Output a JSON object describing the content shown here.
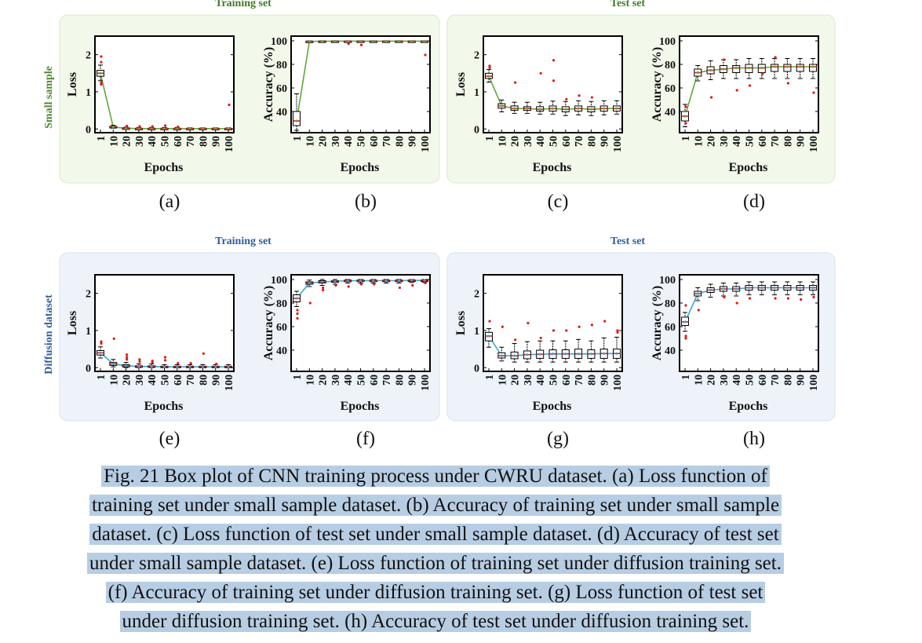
{
  "colors": {
    "small_panel_bg": "#f2f8ea",
    "small_panel_border": "#dbe8cf",
    "small_line": "#5fa83a",
    "small_row_label": "#4c8a2c",
    "small_header": "#3f7a22",
    "diff_panel_bg": "#eef3fa",
    "diff_panel_border": "#d6e1ef",
    "diff_line": "#37a7cf",
    "diff_row_label": "#2f5d9a",
    "diff_header": "#2f5d9a",
    "outlier": "#e01818",
    "median": "#e01818",
    "box_fill": "#ffffff",
    "caption_highlight": "#b7cde3"
  },
  "headers": {
    "row1_training": "Training set",
    "row1_test": "Test set",
    "row2_training": "Training set",
    "row2_test": "Test set"
  },
  "row_labels": {
    "row1": "Small sample",
    "row2": "Diffusion dataset"
  },
  "caption": {
    "lines": [
      "Fig. 21 Box plot of CNN training process under CWRU dataset. (a) Loss function of",
      "training set under small sample dataset. (b) Accuracy of training set under small sample",
      "dataset. (c) Loss function of test set under small sample dataset. (d) Accuracy of test set",
      "under small sample dataset. (e) Loss function of training set under diffusion training set.",
      "(f) Accuracy of training set under diffusion training set. (g) Loss function of test set",
      "under diffusion training set. (h) Accuracy of test set under diffusion training set."
    ]
  },
  "chart_data": [
    {
      "label": "(a)",
      "type": "box",
      "ylabel": "Loss",
      "xlabel": "Epochs",
      "ylim": [
        -0.1,
        2.5
      ],
      "yticks": [
        0,
        1,
        2
      ],
      "categories": [
        "1",
        "10",
        "20",
        "30",
        "40",
        "50",
        "60",
        "70",
        "80",
        "90",
        "100"
      ],
      "medians": [
        1.5,
        0.05,
        0.02,
        0.01,
        0.01,
        0.01,
        0.01,
        0.01,
        0.01,
        0.01,
        0.01
      ],
      "q1": [
        1.42,
        0.04,
        0.01,
        0.0,
        0.0,
        0.0,
        0.0,
        0.0,
        0.0,
        0.0,
        0.0
      ],
      "q3": [
        1.58,
        0.07,
        0.03,
        0.02,
        0.02,
        0.02,
        0.02,
        0.02,
        0.02,
        0.02,
        0.02
      ],
      "whisker_low": [
        1.3,
        0.02,
        0.0,
        0.0,
        0.0,
        0.0,
        0.0,
        0.0,
        0.0,
        0.0,
        0.0
      ],
      "whisker_high": [
        1.72,
        0.1,
        0.05,
        0.04,
        0.04,
        0.04,
        0.04,
        0.03,
        0.03,
        0.03,
        0.03
      ],
      "outliers": [
        [
          0,
          1.95
        ],
        [
          0,
          1.8
        ],
        [
          0,
          1.25
        ],
        [
          0,
          1.2
        ],
        [
          2,
          0.08
        ],
        [
          3,
          0.07
        ],
        [
          4,
          0.07
        ],
        [
          5,
          0.09
        ],
        [
          6,
          0.06
        ],
        [
          10,
          0.65
        ]
      ]
    },
    {
      "label": "(b)",
      "type": "box",
      "ylabel": "Accuracy (%)",
      "xlabel": "Epochs",
      "ylim": [
        22,
        104
      ],
      "yticks": [
        40,
        60,
        80,
        100
      ],
      "categories": [
        "1",
        "10",
        "20",
        "30",
        "40",
        "50",
        "60",
        "70",
        "80",
        "90",
        "100"
      ],
      "medians": [
        32,
        99.5,
        99.6,
        99.7,
        99.7,
        99.7,
        99.7,
        99.7,
        99.7,
        99.7,
        99.7
      ],
      "q1": [
        28,
        99.2,
        99.4,
        99.5,
        99.5,
        99.5,
        99.5,
        99.5,
        99.5,
        99.5,
        99.5
      ],
      "q3": [
        40,
        99.8,
        99.9,
        99.9,
        99.9,
        99.9,
        99.9,
        99.9,
        99.9,
        99.9,
        99.9
      ],
      "whisker_low": [
        24,
        98.8,
        99.0,
        99.2,
        99.2,
        99.2,
        99.2,
        99.2,
        99.2,
        99.2,
        99.2
      ],
      "whisker_high": [
        55,
        100,
        100,
        100,
        100,
        100,
        100,
        100,
        100,
        100,
        100
      ],
      "outliers": [
        [
          4,
          97.5
        ],
        [
          5,
          96.5
        ],
        [
          10,
          88
        ]
      ]
    },
    {
      "label": "(c)",
      "type": "box",
      "ylabel": "Loss",
      "xlabel": "Epochs",
      "ylim": [
        -0.1,
        2.5
      ],
      "yticks": [
        0,
        1,
        2
      ],
      "categories": [
        "1",
        "10",
        "20",
        "30",
        "40",
        "50",
        "60",
        "70",
        "80",
        "90",
        "100"
      ],
      "medians": [
        1.42,
        0.62,
        0.55,
        0.55,
        0.53,
        0.55,
        0.53,
        0.55,
        0.53,
        0.55,
        0.55
      ],
      "q1": [
        1.36,
        0.56,
        0.5,
        0.5,
        0.48,
        0.48,
        0.46,
        0.48,
        0.46,
        0.48,
        0.48
      ],
      "q3": [
        1.5,
        0.68,
        0.62,
        0.6,
        0.6,
        0.62,
        0.6,
        0.62,
        0.6,
        0.62,
        0.62
      ],
      "whisker_low": [
        1.26,
        0.46,
        0.42,
        0.42,
        0.4,
        0.4,
        0.36,
        0.38,
        0.36,
        0.38,
        0.4
      ],
      "whisker_high": [
        1.6,
        0.78,
        0.72,
        0.72,
        0.72,
        0.75,
        0.74,
        0.76,
        0.74,
        0.76,
        0.76
      ],
      "outliers": [
        [
          0,
          1.7
        ],
        [
          0,
          1.65
        ],
        [
          2,
          1.25
        ],
        [
          4,
          1.5
        ],
        [
          5,
          1.85
        ],
        [
          5,
          1.3
        ],
        [
          6,
          0.8
        ],
        [
          7,
          0.9
        ],
        [
          8,
          0.85
        ]
      ]
    },
    {
      "label": "(d)",
      "type": "box",
      "ylabel": "Accuracy (%)",
      "xlabel": "Epochs",
      "ylim": [
        22,
        104
      ],
      "yticks": [
        40,
        60,
        80,
        100
      ],
      "categories": [
        "1",
        "10",
        "20",
        "30",
        "40",
        "50",
        "60",
        "70",
        "80",
        "90",
        "100"
      ],
      "medians": [
        36,
        73,
        75,
        76,
        77,
        77,
        77,
        78,
        78,
        78,
        78
      ],
      "q1": [
        32,
        70,
        72,
        73,
        73,
        73,
        73,
        74,
        74,
        74,
        74
      ],
      "q3": [
        40,
        76,
        78,
        79,
        79,
        80,
        80,
        80,
        80,
        80,
        80
      ],
      "whisker_low": [
        27,
        66,
        67,
        68,
        68,
        68,
        68,
        68,
        68,
        68,
        68
      ],
      "whisker_high": [
        46,
        79,
        83,
        84,
        84,
        85,
        85,
        85,
        85,
        85,
        85
      ],
      "outliers": [
        [
          0,
          44
        ],
        [
          0,
          30
        ],
        [
          2,
          52
        ],
        [
          3,
          84
        ],
        [
          4,
          58
        ],
        [
          5,
          62
        ],
        [
          6,
          72
        ],
        [
          7,
          86
        ],
        [
          8,
          64
        ],
        [
          10,
          56
        ]
      ]
    },
    {
      "label": "(e)",
      "type": "box",
      "ylabel": "Loss",
      "xlabel": "Epochs",
      "ylim": [
        -0.1,
        2.5
      ],
      "yticks": [
        0,
        1,
        2
      ],
      "categories": [
        "1",
        "10",
        "20",
        "30",
        "40",
        "50",
        "60",
        "70",
        "80",
        "90",
        "100"
      ],
      "medians": [
        0.4,
        0.1,
        0.05,
        0.03,
        0.03,
        0.02,
        0.02,
        0.02,
        0.02,
        0.02,
        0.02
      ],
      "q1": [
        0.34,
        0.06,
        0.02,
        0.01,
        0.01,
        0.01,
        0.01,
        0.01,
        0.01,
        0.01,
        0.01
      ],
      "q3": [
        0.46,
        0.14,
        0.08,
        0.05,
        0.05,
        0.04,
        0.04,
        0.04,
        0.04,
        0.04,
        0.04
      ],
      "whisker_low": [
        0.26,
        0.02,
        0.0,
        0.0,
        0.0,
        0.0,
        0.0,
        0.0,
        0.0,
        0.0,
        0.0
      ],
      "whisker_high": [
        0.56,
        0.22,
        0.14,
        0.1,
        0.1,
        0.08,
        0.08,
        0.08,
        0.08,
        0.08,
        0.08
      ],
      "outliers": [
        [
          0,
          0.7
        ],
        [
          0,
          0.65
        ],
        [
          1,
          0.78
        ],
        [
          2,
          0.35
        ],
        [
          2,
          0.28
        ],
        [
          2,
          0.22
        ],
        [
          3,
          0.22
        ],
        [
          3,
          0.16
        ],
        [
          4,
          0.18
        ],
        [
          4,
          0.14
        ],
        [
          5,
          0.28
        ],
        [
          5,
          0.2
        ],
        [
          6,
          0.12
        ],
        [
          7,
          0.12
        ],
        [
          8,
          0.38
        ],
        [
          9,
          0.1
        ]
      ]
    },
    {
      "label": "(f)",
      "type": "box",
      "ylabel": "Accuracy (%)",
      "xlabel": "Epochs",
      "ylim": [
        22,
        104
      ],
      "yticks": [
        40,
        60,
        80,
        100
      ],
      "categories": [
        "1",
        "10",
        "20",
        "30",
        "40",
        "50",
        "60",
        "70",
        "80",
        "90",
        "100"
      ],
      "medians": [
        84,
        97,
        98,
        98.5,
        99,
        99,
        99,
        99,
        99,
        99.2,
        99.2
      ],
      "q1": [
        81,
        96,
        97,
        98,
        98.5,
        98.5,
        98.5,
        98.5,
        98.5,
        98.8,
        98.8
      ],
      "q3": [
        87,
        98,
        99,
        99,
        99.5,
        99.5,
        99.5,
        99.5,
        99.5,
        99.6,
        99.6
      ],
      "whisker_low": [
        77,
        94,
        95,
        96,
        97,
        97,
        97,
        97,
        97,
        97.5,
        97.5
      ],
      "whisker_high": [
        90,
        99.5,
        100,
        100,
        100,
        100,
        100,
        100,
        100,
        100,
        100
      ],
      "outliers": [
        [
          0,
          74
        ],
        [
          0,
          71
        ],
        [
          0,
          67
        ],
        [
          1,
          80
        ],
        [
          2,
          93
        ],
        [
          2,
          91
        ],
        [
          3,
          95
        ],
        [
          4,
          94
        ],
        [
          5,
          96
        ],
        [
          6,
          96
        ],
        [
          8,
          93
        ],
        [
          9,
          95
        ],
        [
          10,
          97
        ]
      ]
    },
    {
      "label": "(g)",
      "type": "box",
      "ylabel": "Loss",
      "xlabel": "Epochs",
      "ylim": [
        -0.1,
        2.5
      ],
      "yticks": [
        0,
        1,
        2
      ],
      "categories": [
        "1",
        "10",
        "20",
        "30",
        "40",
        "50",
        "60",
        "70",
        "80",
        "90",
        "100"
      ],
      "medians": [
        0.85,
        0.32,
        0.32,
        0.35,
        0.36,
        0.37,
        0.37,
        0.37,
        0.37,
        0.38,
        0.38
      ],
      "q1": [
        0.72,
        0.26,
        0.24,
        0.24,
        0.25,
        0.25,
        0.25,
        0.25,
        0.25,
        0.25,
        0.25
      ],
      "q3": [
        0.95,
        0.4,
        0.42,
        0.45,
        0.47,
        0.48,
        0.48,
        0.5,
        0.48,
        0.5,
        0.5
      ],
      "whisker_low": [
        0.55,
        0.18,
        0.15,
        0.15,
        0.15,
        0.15,
        0.15,
        0.15,
        0.15,
        0.15,
        0.15
      ],
      "whisker_high": [
        1.05,
        0.55,
        0.65,
        0.7,
        0.72,
        0.72,
        0.72,
        0.76,
        0.72,
        0.8,
        0.82
      ],
      "outliers": [
        [
          0,
          1.25
        ],
        [
          1,
          1.1
        ],
        [
          2,
          0.75
        ],
        [
          3,
          1.2
        ],
        [
          4,
          0.8
        ],
        [
          5,
          1.0
        ],
        [
          6,
          1.0
        ],
        [
          7,
          1.1
        ],
        [
          8,
          1.15
        ],
        [
          9,
          1.25
        ],
        [
          10,
          1.0
        ],
        [
          10,
          0.95
        ]
      ]
    },
    {
      "label": "(h)",
      "type": "box",
      "ylabel": "Accuracy (%)",
      "xlabel": "Epochs",
      "ylim": [
        22,
        104
      ],
      "yticks": [
        40,
        60,
        80,
        100
      ],
      "categories": [
        "1",
        "10",
        "20",
        "30",
        "40",
        "50",
        "60",
        "70",
        "80",
        "90",
        "100"
      ],
      "medians": [
        64,
        88,
        91,
        92,
        92,
        93,
        93,
        93,
        93,
        93,
        93
      ],
      "q1": [
        61,
        86,
        89,
        90,
        90,
        91,
        91,
        91,
        91,
        91,
        91
      ],
      "q3": [
        68,
        90,
        93,
        94,
        94,
        95,
        95,
        95,
        95,
        95,
        95
      ],
      "whisker_low": [
        56,
        82,
        85,
        86,
        86,
        87,
        87,
        87,
        87,
        87,
        87
      ],
      "whisker_high": [
        72,
        93,
        96,
        97,
        97,
        98,
        98,
        98,
        98,
        98,
        98
      ],
      "outliers": [
        [
          0,
          52
        ],
        [
          0,
          50
        ],
        [
          0,
          78
        ],
        [
          1,
          74
        ],
        [
          3,
          85
        ],
        [
          4,
          80
        ],
        [
          5,
          84
        ],
        [
          7,
          84
        ],
        [
          8,
          84
        ],
        [
          9,
          83
        ],
        [
          10,
          85
        ]
      ]
    }
  ]
}
